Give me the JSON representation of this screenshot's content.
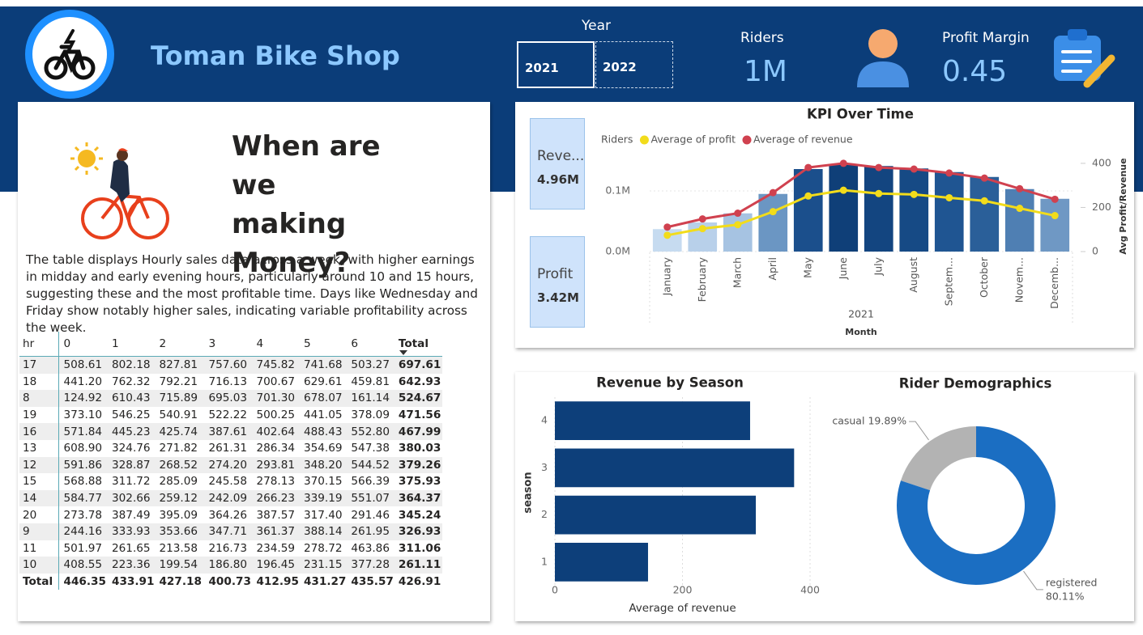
{
  "header": {
    "title": "Toman Bike Shop"
  },
  "slicer": {
    "label": "Year",
    "options": [
      "2021",
      "2022"
    ],
    "selected": "2021"
  },
  "kpis": [
    {
      "label": "Riders",
      "value": "1M"
    },
    {
      "label": "Profit Margin",
      "value": "0.45"
    }
  ],
  "cards": [
    {
      "label": "Reve...",
      "value": "4.96M"
    },
    {
      "label": "Profit",
      "value": "3.42M"
    }
  ],
  "panel": {
    "heading": "When are we making Money?",
    "description": "The table displays Hourly sales data across a week, with higher earnings in midday and early evening hours, particularly around 10 and 15 hours, suggesting these and the most profitable time. Days like Wednesday and Friday show notably higher sales, indicating variable profitability across the week."
  },
  "table": {
    "columns": [
      "hr",
      "0",
      "1",
      "2",
      "3",
      "4",
      "5",
      "6",
      "Total"
    ],
    "sort_column": "Total",
    "rows": [
      [
        "17",
        "508.61",
        "802.18",
        "827.81",
        "757.60",
        "745.82",
        "741.68",
        "503.27",
        "697.61"
      ],
      [
        "18",
        "441.20",
        "762.32",
        "792.21",
        "716.13",
        "700.67",
        "629.61",
        "459.81",
        "642.93"
      ],
      [
        "8",
        "124.92",
        "610.43",
        "715.89",
        "695.03",
        "701.30",
        "678.07",
        "161.14",
        "524.67"
      ],
      [
        "19",
        "373.10",
        "546.25",
        "540.91",
        "522.22",
        "500.25",
        "441.05",
        "378.09",
        "471.56"
      ],
      [
        "16",
        "571.84",
        "445.23",
        "425.74",
        "387.61",
        "402.64",
        "488.43",
        "552.80",
        "467.99"
      ],
      [
        "13",
        "608.90",
        "324.76",
        "271.82",
        "261.31",
        "286.34",
        "354.69",
        "547.38",
        "380.03"
      ],
      [
        "12",
        "591.86",
        "328.87",
        "268.52",
        "274.20",
        "293.81",
        "348.20",
        "544.52",
        "379.26"
      ],
      [
        "15",
        "568.88",
        "311.72",
        "285.09",
        "245.58",
        "278.13",
        "370.15",
        "566.39",
        "375.93"
      ],
      [
        "14",
        "584.77",
        "302.66",
        "259.12",
        "242.09",
        "266.23",
        "339.19",
        "551.07",
        "364.37"
      ],
      [
        "20",
        "273.78",
        "387.49",
        "395.09",
        "364.26",
        "387.57",
        "317.40",
        "291.46",
        "345.24"
      ],
      [
        "9",
        "244.16",
        "333.93",
        "353.66",
        "347.71",
        "361.37",
        "388.14",
        "261.95",
        "326.93"
      ],
      [
        "11",
        "501.97",
        "261.65",
        "213.58",
        "216.73",
        "234.59",
        "278.72",
        "463.86",
        "311.06"
      ],
      [
        "10",
        "408.55",
        "223.36",
        "199.54",
        "186.80",
        "196.45",
        "231.15",
        "377.28",
        "261.11"
      ]
    ],
    "total": [
      "Total",
      "446.35",
      "433.91",
      "427.18",
      "400.73",
      "412.95",
      "431.27",
      "435.57",
      "426.91"
    ]
  },
  "chart_data": [
    {
      "type": "combo",
      "title": "KPI Over Time",
      "xlabel": "Month",
      "x_year": "2021",
      "y2label": "Avg Profit/Revenue",
      "categories": [
        "January",
        "February",
        "March",
        "April",
        "May",
        "June",
        "July",
        "August",
        "Septem...",
        "October",
        "Novem...",
        "Decemb..."
      ],
      "series": [
        {
          "name": "Riders",
          "type": "bar",
          "colors": [
            "#c6dbf0",
            "#b8d0ea",
            "#a6c3e2",
            "#6b96c3",
            "#1b4f8c",
            "#0f3f78",
            "#134580",
            "#164a85",
            "#1f5592",
            "#2a5f99",
            "#4f7fb3",
            "#6f98c4"
          ],
          "values": [
            37000,
            48000,
            63000,
            95000,
            136000,
            144000,
            141000,
            137000,
            131000,
            123000,
            103000,
            87000
          ]
        },
        {
          "name": "Average of profit",
          "type": "line",
          "axis": "y2",
          "color": "#f2dc1b",
          "values": [
            74,
            104,
            122,
            181,
            252,
            278,
            263,
            259,
            244,
            230,
            196,
            163
          ]
        },
        {
          "name": "Average of revenue",
          "type": "line",
          "axis": "y2",
          "color": "#d0414f",
          "values": [
            111,
            148,
            174,
            267,
            381,
            400,
            381,
            374,
            356,
            333,
            285,
            237
          ]
        }
      ],
      "ylim": [
        0,
        160000
      ],
      "yticks": [
        {
          "value": 0,
          "label": "0.0M"
        },
        {
          "value": 100000,
          "label": "0.1M"
        }
      ],
      "y2lim": [
        0,
        440
      ],
      "y2ticks": [
        0,
        200,
        400
      ],
      "grid": true
    },
    {
      "type": "bar",
      "orientation": "horizontal",
      "title": "Revenue by Season",
      "xlabel": "Average of revenue",
      "ylabel": "season",
      "categories": [
        "1",
        "2",
        "3",
        "4"
      ],
      "values": [
        146,
        315,
        375,
        306
      ],
      "color": "#0d3f7a",
      "xlim": [
        0,
        400
      ],
      "xticks": [
        0,
        200,
        400
      ],
      "grid": true
    },
    {
      "type": "donut",
      "title": "Rider Demographics",
      "categories": [
        "casual",
        "registered"
      ],
      "values": [
        19.89,
        80.11
      ],
      "value_labels": [
        "19.89%",
        "80.11%"
      ],
      "colors": [
        "#b3b3b3",
        "#1b6ec2"
      ]
    }
  ]
}
